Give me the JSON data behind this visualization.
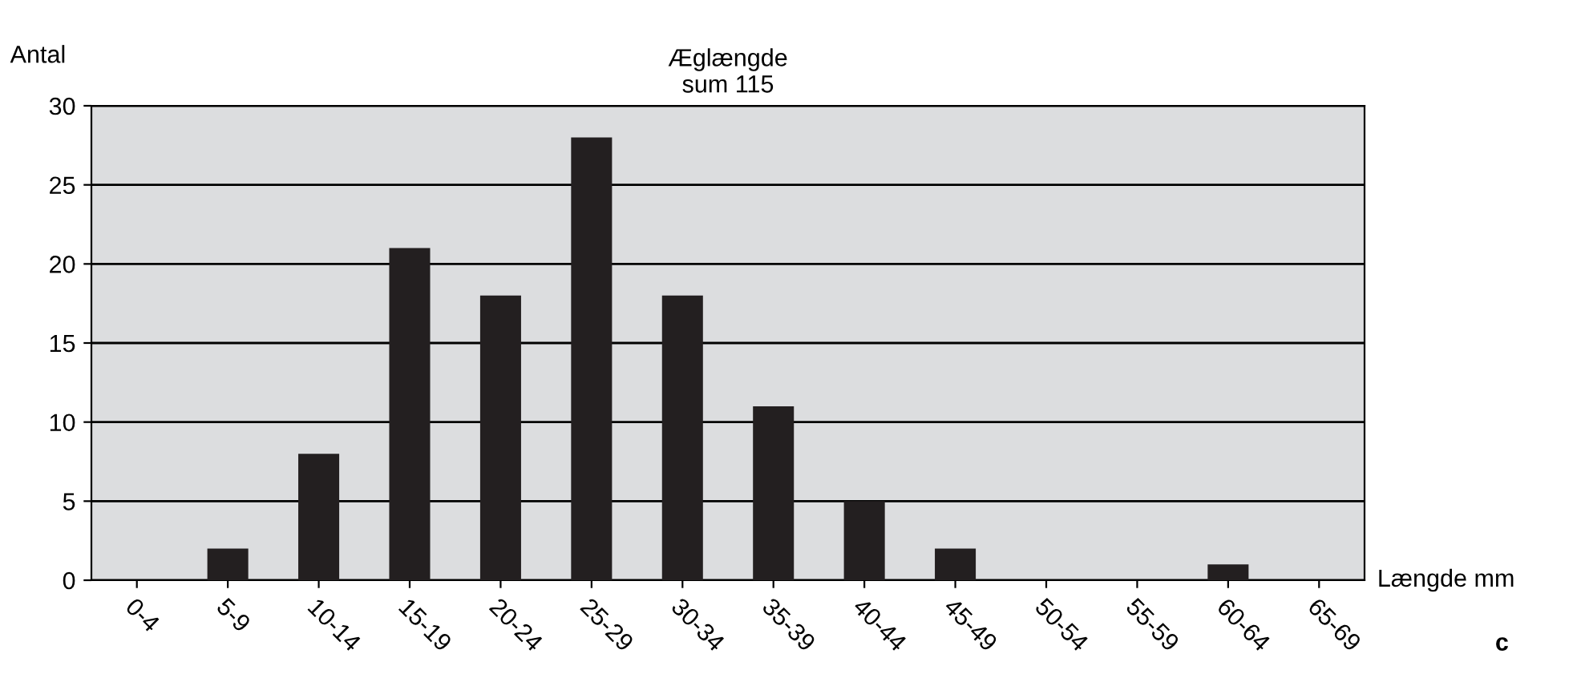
{
  "chart_data": {
    "type": "bar",
    "title": "Æglængde",
    "subtitle": "sum 115",
    "xlabel": "Længde mm",
    "ylabel": "Antal",
    "categories": [
      "0-4",
      "5-9",
      "10-14",
      "15-19",
      "20-24",
      "25-29",
      "30-34",
      "35-39",
      "40-44",
      "45-49",
      "50-54",
      "55-59",
      "60-64",
      "65-69"
    ],
    "values": [
      0,
      2,
      8,
      21,
      18,
      28,
      18,
      11,
      5,
      2,
      0,
      0,
      1,
      0
    ],
    "color": "#231f20",
    "ylim": [
      0,
      30
    ],
    "yticks": [
      0,
      5,
      10,
      15,
      20,
      25,
      30
    ],
    "grid": "y",
    "annotations": [
      "c"
    ]
  }
}
